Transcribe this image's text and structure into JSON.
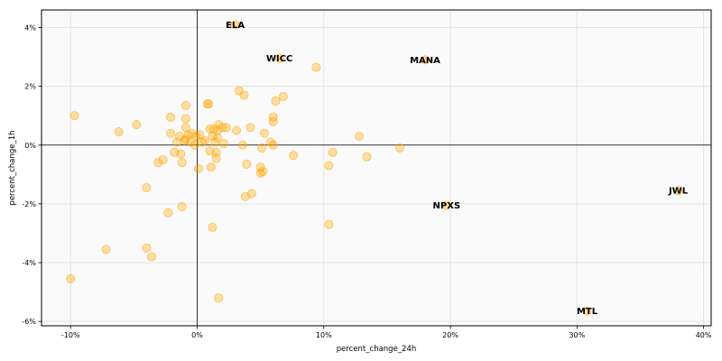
{
  "chart_data": {
    "type": "scatter",
    "title": "",
    "xlabel": "percent_change_24h",
    "ylabel": "percent_change_1h",
    "xlim": [
      -12.3,
      40.6
    ],
    "ylim": [
      -6.15,
      4.6
    ],
    "xticks": [
      -10,
      0,
      10,
      20,
      30,
      40
    ],
    "xtick_labels": [
      "-10%",
      "0%",
      "10%",
      "20%",
      "30%",
      "40%"
    ],
    "yticks": [
      -6,
      -4,
      -2,
      0,
      2,
      4
    ],
    "ytick_labels": [
      "-6%",
      "-4%",
      "-2%",
      "0%",
      "2%",
      "4%"
    ],
    "grid": true,
    "zero_lines": true,
    "marker_color": "#ffa500",
    "points": [
      {
        "x": -9.7,
        "y": 1.0
      },
      {
        "x": -10.0,
        "y": -4.55
      },
      {
        "x": -7.2,
        "y": -3.55
      },
      {
        "x": -6.2,
        "y": 0.45
      },
      {
        "x": -4.8,
        "y": 0.7
      },
      {
        "x": -4.0,
        "y": -1.45
      },
      {
        "x": -4.0,
        "y": -3.5
      },
      {
        "x": -3.6,
        "y": -3.8
      },
      {
        "x": -3.1,
        "y": -0.6
      },
      {
        "x": -2.7,
        "y": -0.5
      },
      {
        "x": -2.3,
        "y": -2.3
      },
      {
        "x": -2.1,
        "y": 0.4
      },
      {
        "x": -2.1,
        "y": 0.95
      },
      {
        "x": -1.8,
        "y": -0.25
      },
      {
        "x": -1.6,
        "y": 0.1
      },
      {
        "x": -1.4,
        "y": 0.3
      },
      {
        "x": -1.3,
        "y": -0.3
      },
      {
        "x": -1.2,
        "y": -0.6
      },
      {
        "x": -1.2,
        "y": -2.1
      },
      {
        "x": -1.0,
        "y": 0.15
      },
      {
        "x": -0.9,
        "y": 0.2
      },
      {
        "x": -0.9,
        "y": 0.6
      },
      {
        "x": -0.9,
        "y": 0.9
      },
      {
        "x": -0.9,
        "y": 1.35
      },
      {
        "x": -0.7,
        "y": 0.35
      },
      {
        "x": -0.5,
        "y": 0.1
      },
      {
        "x": -0.4,
        "y": 0.4
      },
      {
        "x": -0.2,
        "y": 0.0
      },
      {
        "x": -0.1,
        "y": 0.3
      },
      {
        "x": 0.1,
        "y": -0.8
      },
      {
        "x": 0.2,
        "y": 0.35
      },
      {
        "x": 0.4,
        "y": 0.1
      },
      {
        "x": 0.6,
        "y": 0.15
      },
      {
        "x": 0.8,
        "y": 1.4
      },
      {
        "x": 0.9,
        "y": 1.4
      },
      {
        "x": 1.0,
        "y": 0.55
      },
      {
        "x": 1.0,
        "y": -0.2
      },
      {
        "x": 1.1,
        "y": -0.75
      },
      {
        "x": 1.2,
        "y": 0.3
      },
      {
        "x": 1.2,
        "y": -2.8
      },
      {
        "x": 1.3,
        "y": 0.55
      },
      {
        "x": 1.4,
        "y": 0.1
      },
      {
        "x": 1.5,
        "y": -0.25
      },
      {
        "x": 1.5,
        "y": -0.45
      },
      {
        "x": 1.6,
        "y": 0.5
      },
      {
        "x": 1.6,
        "y": 0.25
      },
      {
        "x": 1.7,
        "y": 0.7
      },
      {
        "x": 1.7,
        "y": -5.2
      },
      {
        "x": 2.0,
        "y": 0.6
      },
      {
        "x": 2.1,
        "y": 0.05
      },
      {
        "x": 2.3,
        "y": 0.6
      },
      {
        "x": 3.1,
        "y": 0.5
      },
      {
        "x": 3.3,
        "y": 1.85
      },
      {
        "x": 3.6,
        "y": 0.0
      },
      {
        "x": 3.7,
        "y": 1.7
      },
      {
        "x": 3.8,
        "y": -1.75
      },
      {
        "x": 3.9,
        "y": -0.65
      },
      {
        "x": 4.2,
        "y": 0.6
      },
      {
        "x": 4.3,
        "y": -1.65
      },
      {
        "x": 5.0,
        "y": -0.95
      },
      {
        "x": 5.0,
        "y": -0.75
      },
      {
        "x": 5.1,
        "y": -0.1
      },
      {
        "x": 5.2,
        "y": -0.9
      },
      {
        "x": 5.3,
        "y": 0.4
      },
      {
        "x": 5.8,
        "y": 0.1
      },
      {
        "x": 6.0,
        "y": 0.0
      },
      {
        "x": 6.0,
        "y": 0.8
      },
      {
        "x": 6.0,
        "y": 0.95
      },
      {
        "x": 6.2,
        "y": 1.5
      },
      {
        "x": 6.8,
        "y": 1.65
      },
      {
        "x": 7.6,
        "y": -0.35
      },
      {
        "x": 9.4,
        "y": 2.65
      },
      {
        "x": 10.4,
        "y": -0.7
      },
      {
        "x": 10.4,
        "y": -2.7
      },
      {
        "x": 10.7,
        "y": -0.25
      },
      {
        "x": 12.8,
        "y": 0.3
      },
      {
        "x": 13.4,
        "y": -0.4
      },
      {
        "x": 16.0,
        "y": -0.1
      },
      {
        "x": 3.0,
        "y": 4.1,
        "label": "ELA"
      },
      {
        "x": 6.5,
        "y": 2.95,
        "label": "WICC"
      },
      {
        "x": 18.0,
        "y": 2.9,
        "label": "MANA"
      },
      {
        "x": 19.7,
        "y": -2.05,
        "label": "NPXS"
      },
      {
        "x": 38.0,
        "y": -1.55,
        "label": "JWL"
      },
      {
        "x": 30.8,
        "y": -5.65,
        "label": "MTL"
      }
    ]
  }
}
